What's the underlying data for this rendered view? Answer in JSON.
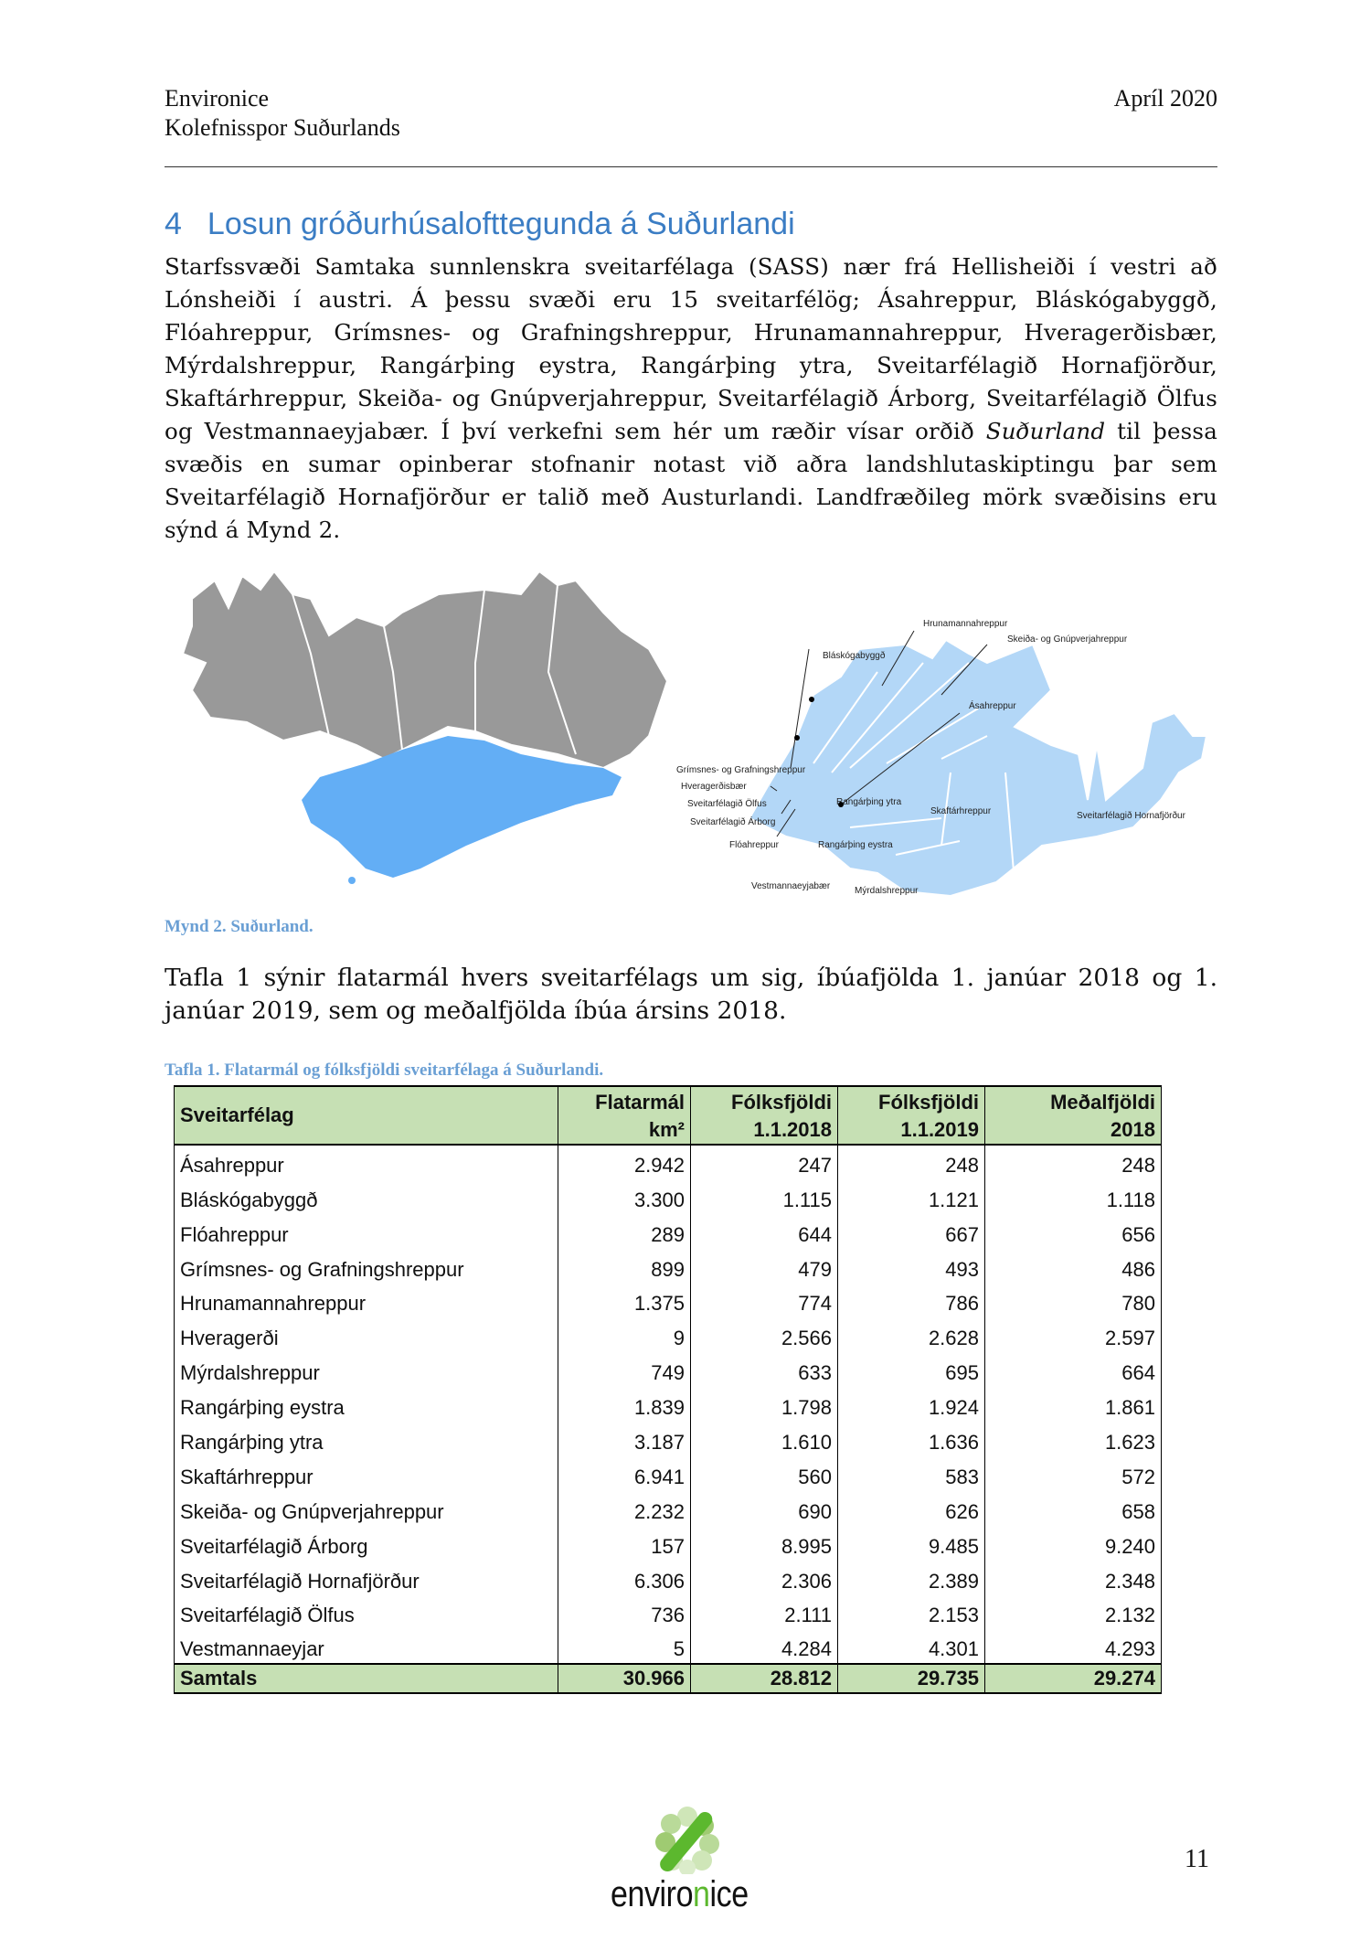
{
  "header": {
    "company": "Environice",
    "report": "Kolefnisspor Suðurlands",
    "date": "Apríl 2020"
  },
  "section": {
    "number": "4",
    "title": "Losun gróðurhúsalofttegunda á Suðurlandi"
  },
  "paragraph1_parts": [
    "Starfssvæði Samtaka sunnlenskra sveitarfélaga (SASS) nær frá Hellisheiði í vestri að Lónsheiði í austri. Á þessu svæði eru 15 sveitarfélög; Ásahreppur, Bláskógabyggð, Flóahreppur, Grímsnes- og Grafningshreppur, Hrunamannahreppur, Hveragerðisbær, Mýrdalshreppur, Rangárþing eystra, Rangárþing ytra, Sveitarfélagið Hornafjörður, Skaftárhreppur, Skeiða- og Gnúpverjahreppur, Sveitarfélagið Árborg, Sveitarfélagið Ölfus og Vestmannaeyjabær. Í því verkefni sem hér um ræðir vísar orðið ",
    "Suðurland",
    " til þessa svæðis en sumar opinberar stofnanir notast við aðra landshlutaskiptingu þar sem Sveitarfélagið Hornafjörður er talið með Austurlandi. Landfræðileg mörk svæðisins eru sýnd á Mynd 2."
  ],
  "map_labels": {
    "hrunamanna": "Hrunamannahreppur",
    "skeida": "Skeiða- og Gnúpverjahreppur",
    "blaskoga": "Bláskógabyggð",
    "asa": "Ásahreppur",
    "grimsnes": "Grímsnes- og Grafningshreppur",
    "hveragerdi": "Hveragerðisbær",
    "olfus": "Sveitarfélagið Ölfus",
    "arborg": "Sveitarfélagið Árborg",
    "floa": "Flóahreppur",
    "rang_ytra": "Rangárþing ytra",
    "skaftar": "Skaftárhreppur",
    "hornafj": "Sveitarfélagið Hornafjörður",
    "rang_eystra": "Rangárþing eystra",
    "vestm": "Vestmannaeyjabær",
    "myrdals": "Mýrdalshreppur"
  },
  "colors": {
    "region_blue": "#63aef5",
    "inset_blue": "#b3d7f7",
    "land_gray": "#999999",
    "table_header": "#c6e0b4",
    "heading": "#3b7dc4",
    "caption": "#6a9fd4",
    "logo_green": "#5cb82e"
  },
  "figure_caption": "Mynd 2. Suðurland.",
  "paragraph2": "Tafla 1 sýnir flatarmál hvers sveitarfélags um sig, íbúafjölda 1. janúar 2018 og 1. janúar 2019, sem og meðalfjölda íbúa ársins 2018.",
  "table": {
    "caption": "Tafla 1. Flatarmál og fólksfjöldi sveitarfélaga á Suðurlandi.",
    "headers": [
      [
        "Sveitarfélag",
        ""
      ],
      [
        "Flatarmál",
        "km²"
      ],
      [
        "Fólksfjöldi",
        "1.1.2018"
      ],
      [
        "Fólksfjöldi",
        "1.1.2019"
      ],
      [
        "Meðalfjöldi",
        "2018"
      ]
    ],
    "rows": [
      [
        "Ásahreppur",
        "2.942",
        "247",
        "248",
        "248"
      ],
      [
        "Bláskógabyggð",
        "3.300",
        "1.115",
        "1.121",
        "1.118"
      ],
      [
        "Flóahreppur",
        "289",
        "644",
        "667",
        "656"
      ],
      [
        "Grímsnes- og Grafningshreppur",
        "899",
        "479",
        "493",
        "486"
      ],
      [
        "Hrunamannahreppur",
        "1.375",
        "774",
        "786",
        "780"
      ],
      [
        "Hveragerði",
        "9",
        "2.566",
        "2.628",
        "2.597"
      ],
      [
        "Mýrdalshreppur",
        "749",
        "633",
        "695",
        "664"
      ],
      [
        "Rangárþing eystra",
        "1.839",
        "1.798",
        "1.924",
        "1.861"
      ],
      [
        "Rangárþing ytra",
        "3.187",
        "1.610",
        "1.636",
        "1.623"
      ],
      [
        "Skaftárhreppur",
        "6.941",
        "560",
        "583",
        "572"
      ],
      [
        "Skeiða- og Gnúpverjahreppur",
        "2.232",
        "690",
        "626",
        "658"
      ],
      [
        "Sveitarfélagið Árborg",
        "157",
        "8.995",
        "9.485",
        "9.240"
      ],
      [
        "Sveitarfélagið Hornafjörður",
        "6.306",
        "2.306",
        "2.389",
        "2.348"
      ],
      [
        "Sveitarfélagið Ölfus",
        "736",
        "2.111",
        "2.153",
        "2.132"
      ],
      [
        "Vestmannaeyjar",
        "5",
        "4.284",
        "4.301",
        "4.293"
      ]
    ],
    "total": [
      "Samtals",
      "30.966",
      "28.812",
      "29.735",
      "29.274"
    ]
  },
  "footer": {
    "logo": "environice",
    "logo_parts": [
      "enviro",
      "n",
      "ice"
    ],
    "page_number": "11"
  }
}
